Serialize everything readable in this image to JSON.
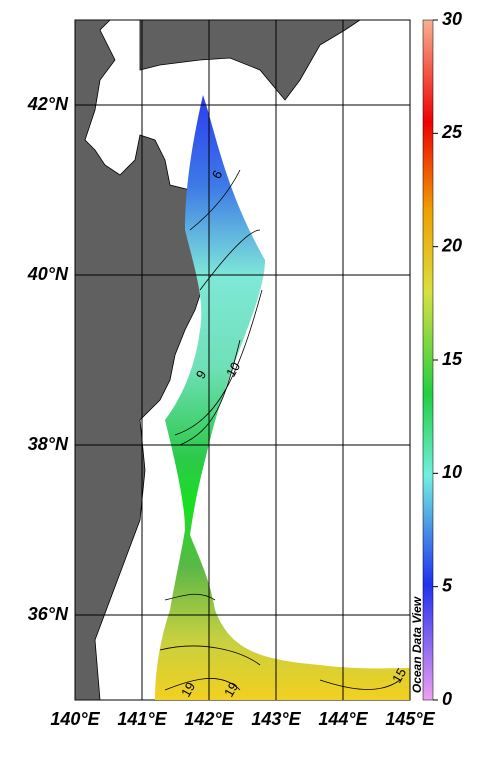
{
  "map": {
    "xlim": [
      140,
      145
    ],
    "ylim": [
      35,
      43
    ],
    "xticks": [
      {
        "value": 140,
        "label": "140°E"
      },
      {
        "value": 141,
        "label": "141°E"
      },
      {
        "value": 142,
        "label": "142°E"
      },
      {
        "value": 143,
        "label": "143°E"
      },
      {
        "value": 144,
        "label": "144°E"
      },
      {
        "value": 145,
        "label": "145°E"
      }
    ],
    "yticks": [
      {
        "value": 36,
        "label": "36°N"
      },
      {
        "value": 38,
        "label": "38°N"
      },
      {
        "value": 40,
        "label": "40°N"
      },
      {
        "value": 42,
        "label": "42°N"
      }
    ],
    "colorbar": {
      "lim": [
        0,
        30
      ],
      "ticks": [
        0,
        5,
        10,
        15,
        20,
        25,
        30
      ]
    },
    "contour_labels": [
      6,
      9,
      10,
      19,
      19,
      15
    ],
    "credit": "Ocean Data View"
  }
}
